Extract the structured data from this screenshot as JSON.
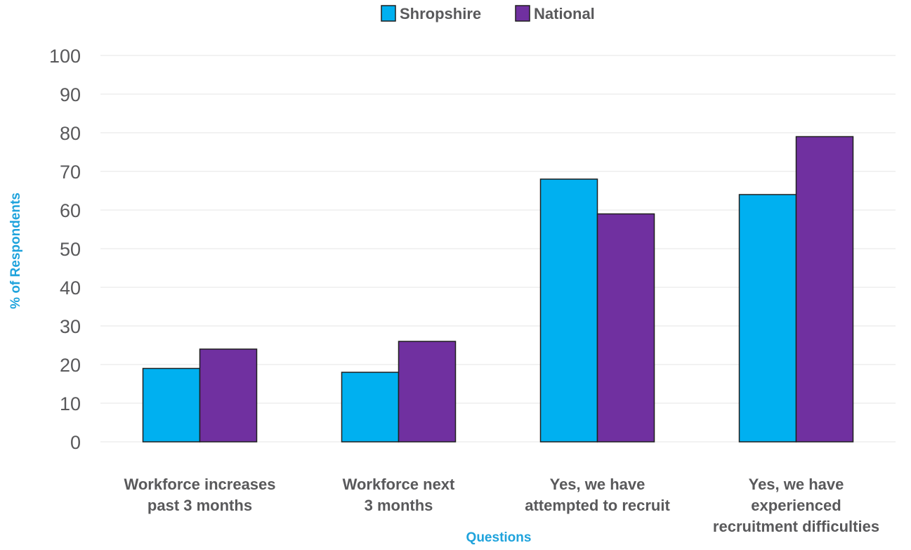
{
  "chart_data": {
    "type": "bar",
    "title": "",
    "categories": [
      [
        "Workforce increases",
        "past 3 months"
      ],
      [
        "Workforce next",
        "3 months"
      ],
      [
        "Yes, we have",
        "attempted to recruit"
      ],
      [
        "Yes, we have",
        "experienced",
        "recruitment difficulties"
      ]
    ],
    "series": [
      {
        "name": "Shropshire",
        "color": "#00b0f0",
        "values": [
          19,
          18,
          68,
          64
        ]
      },
      {
        "name": "National",
        "color": "#7030a0",
        "values": [
          24,
          26,
          59,
          79
        ]
      }
    ],
    "xlabel": "Questions",
    "ylabel": "% of Respondents",
    "ylim": [
      0,
      100
    ],
    "yticks": [
      0,
      10,
      20,
      30,
      40,
      50,
      60,
      70,
      80,
      90,
      100
    ],
    "grid": true,
    "legend_position": "top-center",
    "axis_title_color": "#1fa3dc",
    "text_color": "#59595b"
  }
}
